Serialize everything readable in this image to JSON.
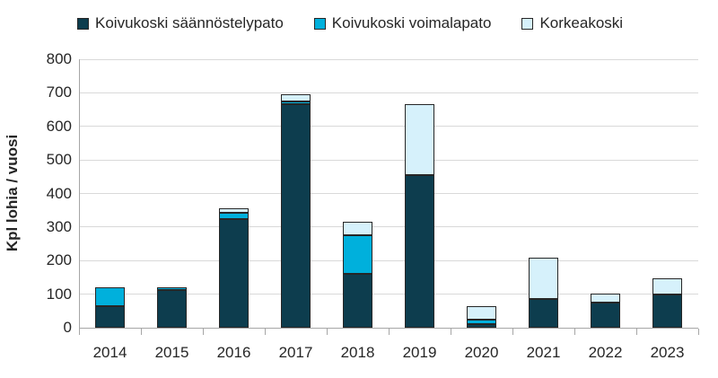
{
  "chart_data": {
    "type": "bar",
    "stacked": true,
    "title": "",
    "xlabel": "",
    "ylabel": "Kpl lohia / vuosi",
    "categories": [
      "2014",
      "2015",
      "2016",
      "2017",
      "2018",
      "2019",
      "2020",
      "2021",
      "2022",
      "2023"
    ],
    "series": [
      {
        "name": "Koivukoski säännöstelypato",
        "color": "#0d3d4e",
        "values": [
          65,
          112,
          325,
          665,
          160,
          455,
          10,
          85,
          75,
          100
        ]
      },
      {
        "name": "Koivukoski voimalapato",
        "color": "#00b0dc",
        "values": [
          55,
          8,
          18,
          10,
          115,
          0,
          15,
          0,
          0,
          0
        ]
      },
      {
        "name": "Korkeakoski",
        "color": "#d6f1fb",
        "values": [
          0,
          0,
          12,
          20,
          40,
          210,
          40,
          123,
          28,
          48
        ]
      }
    ],
    "ylim": [
      0,
      800
    ],
    "yticks": [
      0,
      100,
      200,
      300,
      400,
      500,
      600,
      700,
      800
    ],
    "grid": true,
    "legend_position": "top"
  },
  "style": {
    "background": "#ffffff",
    "grid_color": "#d9d9d9",
    "axis_color": "#a6a6a6",
    "text_color": "#262626",
    "bar_border_color": "#262626"
  }
}
